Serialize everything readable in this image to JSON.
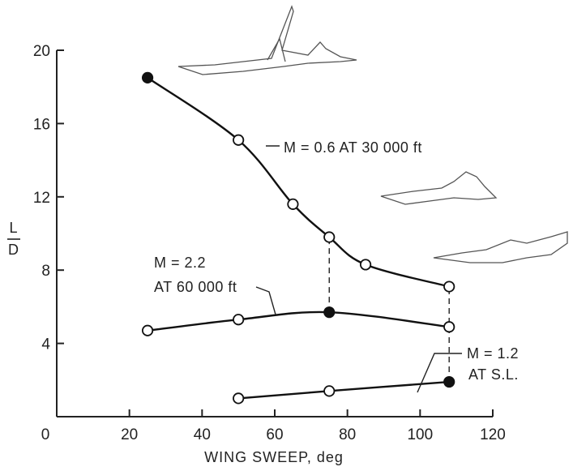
{
  "chart_data": {
    "type": "line",
    "title": "",
    "xlabel": "WING SWEEP, deg",
    "ylabel_top": "L",
    "ylabel_bottom": "D",
    "xlim": [
      0,
      120
    ],
    "ylim": [
      0,
      20
    ],
    "x_ticks": [
      0,
      20,
      40,
      60,
      80,
      100,
      120
    ],
    "y_ticks": [
      4,
      8,
      12,
      16,
      20
    ],
    "grid": false,
    "legend": "none",
    "series": [
      {
        "annotation_line1": "M = 0.6 AT 30 000 ft",
        "points": [
          {
            "x": 25,
            "y": 18.5,
            "filled": true
          },
          {
            "x": 50,
            "y": 15.1,
            "filled": false
          },
          {
            "x": 65,
            "y": 11.6,
            "filled": false
          },
          {
            "x": 75,
            "y": 9.8,
            "filled": false
          },
          {
            "x": 85,
            "y": 8.3,
            "filled": false
          },
          {
            "x": 108,
            "y": 7.1,
            "filled": false
          }
        ]
      },
      {
        "annotation_line1": "M = 2.2",
        "annotation_line2": "AT 60 000 ft",
        "points": [
          {
            "x": 25,
            "y": 4.7,
            "filled": false
          },
          {
            "x": 50,
            "y": 5.3,
            "filled": false
          },
          {
            "x": 75,
            "y": 5.7,
            "filled": true
          },
          {
            "x": 108,
            "y": 4.9,
            "filled": false
          }
        ]
      },
      {
        "annotation_line1": "M = 1.2",
        "annotation_line2": "AT S.L.",
        "points": [
          {
            "x": 50,
            "y": 1.0,
            "filled": false
          },
          {
            "x": 75,
            "y": 1.4,
            "filled": false
          },
          {
            "x": 108,
            "y": 1.9,
            "filled": true
          }
        ]
      }
    ],
    "dashed_verticals": [
      {
        "x": 75,
        "y_from": 5.7,
        "y_to": 9.8
      },
      {
        "x": 108,
        "y_from": 1.9,
        "y_to": 7.1
      }
    ],
    "icons": [
      "aircraft-planform-low-sweep-icon",
      "aircraft-planform-medium-sweep-icon",
      "aircraft-planform-high-sweep-icon"
    ]
  }
}
